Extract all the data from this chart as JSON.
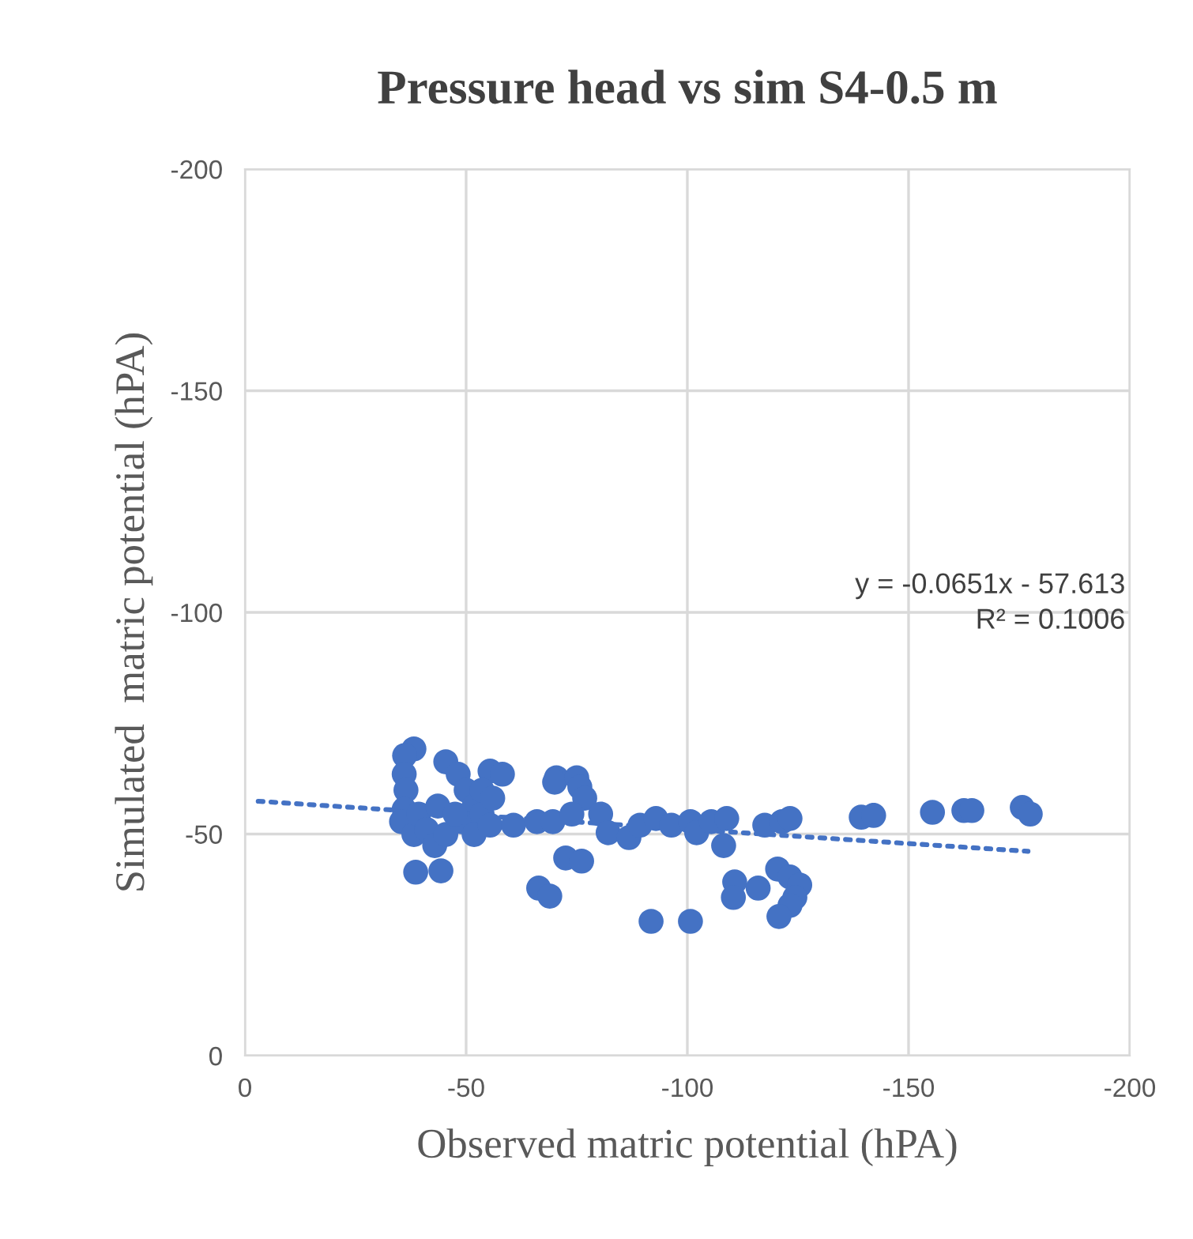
{
  "chart_data": {
    "type": "scatter",
    "title": "Pressure head vs sim S4-0.5 m",
    "xlabel": "Observed matric potential (hPA)",
    "ylabel": "Simulated  matric potential (hPA)",
    "xlim": [
      0,
      -200
    ],
    "ylim": [
      0,
      -200
    ],
    "xticks": [
      0,
      -50,
      -100,
      -150,
      -200
    ],
    "yticks": [
      0,
      -50,
      -100,
      -150,
      -200
    ],
    "grid": true,
    "marker": "circle",
    "annotations": [
      "y = -0.0651x - 57.613",
      "R² = 0.1006"
    ],
    "series": [
      {
        "color": "#4472c4",
        "x": [
          -38.2,
          -36.1,
          -36,
          -36.4,
          -36,
          -35.4,
          -38.2,
          -38.6,
          -44.3,
          -39.3,
          -41.1,
          -42.9,
          -45.4,
          -43.6,
          -45.4,
          -48.2,
          -50,
          -51.8,
          -48.9,
          -53.6,
          -51.8,
          -47.5,
          -55.4,
          -58.2,
          -53.6,
          -56,
          -55.4,
          -60.7,
          -66,
          -69.6,
          -70.4,
          -70,
          -75,
          -75.7,
          -76.8,
          -73.9,
          -72.5,
          -76.1,
          -66.4,
          -68.9,
          -80.4,
          -82.1,
          -86.8,
          -89.3,
          -92.9,
          -96.4,
          -100.7,
          -102.1,
          -105.4,
          -108.9,
          -108.2,
          -110.7,
          -110.4,
          -116,
          -117.5,
          -121.4,
          -123.2,
          -120.4,
          -123.2,
          -125.4,
          -124.3,
          -123.2,
          -120.7,
          -91.8,
          -100.7,
          -139.3,
          -142.1,
          -155.4,
          -162.5,
          -164.3,
          -175.7,
          -177.5
        ],
        "values": [
          -69.2,
          -67.7,
          -63.5,
          -59.9,
          -55.6,
          -52.8,
          -49.9,
          -41.4,
          -41.7,
          -54.5,
          -51,
          -47.4,
          -49.9,
          -56.3,
          -66.3,
          -63.5,
          -59.9,
          -56.3,
          -52.8,
          -54.5,
          -49.9,
          -54.5,
          -64.2,
          -63.5,
          -59.9,
          -58.1,
          -52,
          -52,
          -52.8,
          -52.8,
          -62.7,
          -61.7,
          -62.7,
          -60.6,
          -58.1,
          -54.5,
          -44.6,
          -43.9,
          -37.8,
          -36,
          -54.5,
          -50.3,
          -49.2,
          -52,
          -53.5,
          -52,
          -52.8,
          -50.3,
          -52.8,
          -53.5,
          -47.4,
          -39.2,
          -35.7,
          -37.8,
          -52,
          -52.8,
          -53.5,
          -42.1,
          -40.3,
          -38.5,
          -35.7,
          -33.9,
          -31.4,
          -30.3,
          -30.3,
          -53.8,
          -54.2,
          -54.9,
          -55.3,
          -55.3,
          -56,
          -54.5
        ]
      },
      {
        "type": "line",
        "color": "#4472c4",
        "line_style": "dotted",
        "marker": "none",
        "x": [
          -3,
          -177
        ],
        "values": [
          -57.4,
          -46.1
        ]
      }
    ]
  }
}
